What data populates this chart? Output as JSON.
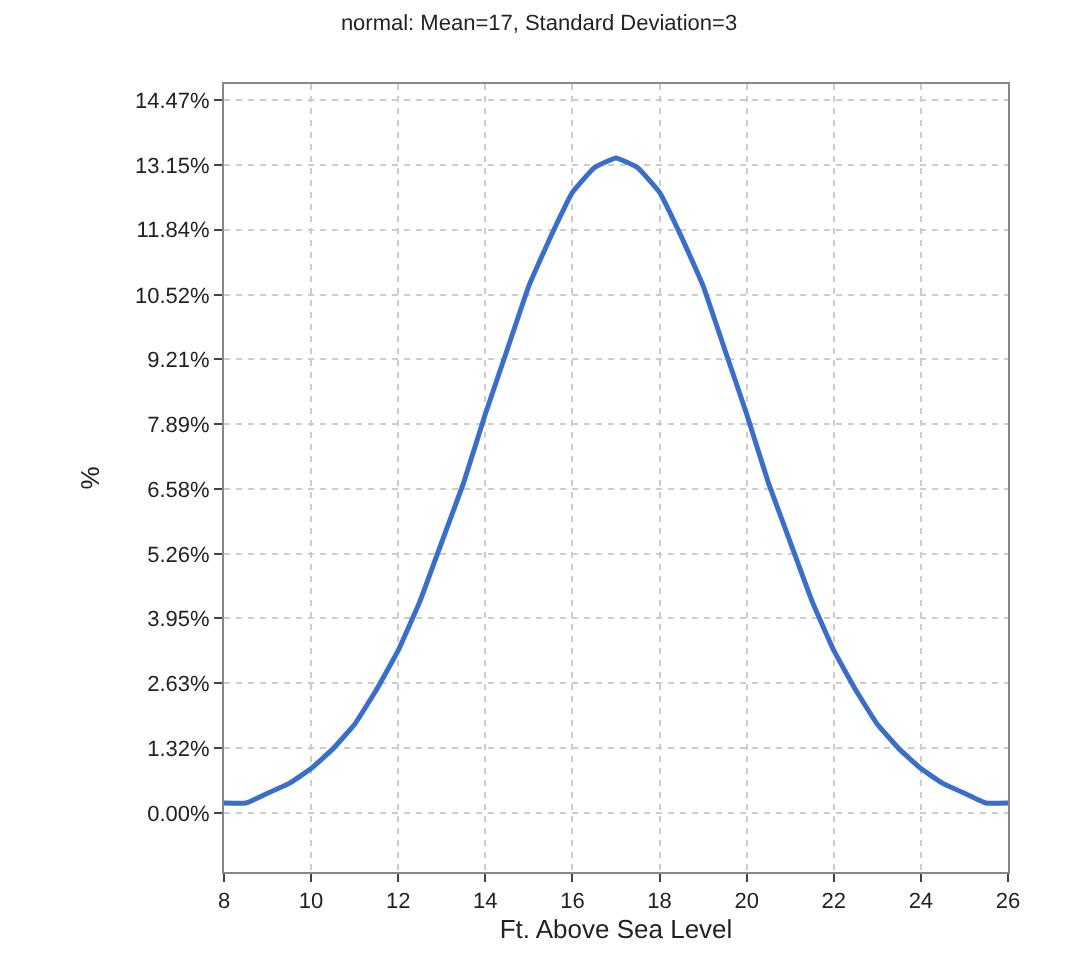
{
  "chart_data": {
    "type": "line",
    "title": "normal: Mean=17, Standard Deviation=3",
    "xlabel": "Ft. Above Sea Level",
    "ylabel": "%",
    "x": [
      8,
      8.5,
      9,
      9.5,
      10,
      10.5,
      11,
      11.5,
      12,
      12.5,
      13,
      13.5,
      14,
      14.5,
      15,
      15.5,
      16,
      16.5,
      17,
      17.5,
      18,
      18.5,
      19,
      19.5,
      20,
      20.5,
      21,
      21.5,
      22,
      22.5,
      23,
      23.5,
      24,
      24.5,
      25,
      25.5,
      26
    ],
    "series": [
      {
        "color": "#3a6fc9",
        "values": [
          0.2,
          0.2,
          0.4,
          0.6,
          0.9,
          1.3,
          1.8,
          2.5,
          3.3,
          4.3,
          5.5,
          6.7,
          8.1,
          9.4,
          10.7,
          11.7,
          12.6,
          13.1,
          13.3,
          13.1,
          12.6,
          11.7,
          10.7,
          9.4,
          8.1,
          6.7,
          5.5,
          4.3,
          3.3,
          2.5,
          1.8,
          1.3,
          0.9,
          0.6,
          0.4,
          0.2,
          0.2
        ]
      }
    ],
    "xlim": [
      8,
      26
    ],
    "xticks": [
      8,
      10,
      12,
      14,
      16,
      18,
      20,
      22,
      24,
      26
    ],
    "ylim": [
      -1.2,
      14.8
    ],
    "yticks": [
      {
        "value": 0,
        "label": "0.00%"
      },
      {
        "value": 1.32,
        "label": "1.32%"
      },
      {
        "value": 2.63,
        "label": "2.63%"
      },
      {
        "value": 3.95,
        "label": "3.95%"
      },
      {
        "value": 5.26,
        "label": "5.26%"
      },
      {
        "value": 6.58,
        "label": "6.58%"
      },
      {
        "value": 7.89,
        "label": "7.89%"
      },
      {
        "value": 9.21,
        "label": "9.21%"
      },
      {
        "value": 10.52,
        "label": "10.52%"
      },
      {
        "value": 11.84,
        "label": "11.84%"
      },
      {
        "value": 13.15,
        "label": "13.15%"
      },
      {
        "value": 14.47,
        "label": "14.47%"
      }
    ],
    "grid": true,
    "marker": "none",
    "line_style": "solid",
    "legend": false
  }
}
